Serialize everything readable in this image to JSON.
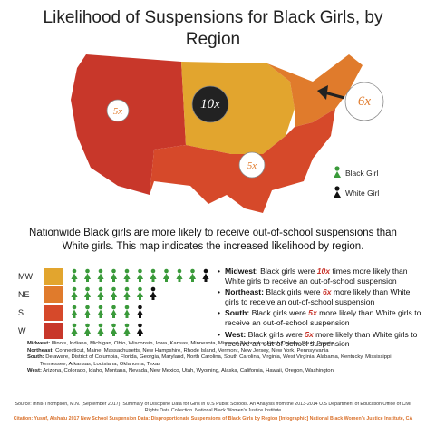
{
  "title": "Likelihood of Suspensions for Black Girls, by Region",
  "map": {
    "bubbles": [
      {
        "region": "W",
        "label": "5x"
      },
      {
        "region": "MW",
        "label": "10x"
      },
      {
        "region": "NE",
        "label": "6x"
      },
      {
        "region": "S",
        "label": "5x"
      }
    ],
    "legend": {
      "black": "Black Girl",
      "white": "White Girl"
    }
  },
  "intro": "Nationwide Black girls are more likely to receive out-of-school suspensions than White girls. This map indicates the increased likelihood by region.",
  "rows": [
    {
      "label": "MW",
      "color": "#e2a52e",
      "black_count": 10,
      "white_count": 1
    },
    {
      "label": "NE",
      "color": "#e07b2c",
      "black_count": 6,
      "white_count": 1
    },
    {
      "label": "S",
      "color": "#d6492a",
      "black_count": 5,
      "white_count": 1
    },
    {
      "label": "W",
      "color": "#c8372a",
      "black_count": 5,
      "white_count": 1
    }
  ],
  "bullets": [
    {
      "region": "Midwest:",
      "before": "Black girls were ",
      "emph": "10x",
      "after": " times more likely than White girls to receive an out-of-school suspension"
    },
    {
      "region": "Northeast:",
      "before": "Black girls were ",
      "emph": "6x",
      "after": " more likely than White girls to receive an out-of-school suspension"
    },
    {
      "region": "South:",
      "before": "Black girls were ",
      "emph": "5x",
      "after": " more likely than White girls to receive an out-of-school suspension"
    },
    {
      "region": "West:",
      "before": "Black girls were ",
      "emph": "5x",
      "after": " more likely than White girls to receive an out-of-school suspension"
    }
  ],
  "definitions": [
    {
      "region": "Midwest:",
      "states": "Illinois, Indiana, Michigan, Ohio, Wisconsin, Iowa, Kansas, Minnesota, Missouri, Nebraska, North Dakota, South Dakota"
    },
    {
      "region": "Northeast:",
      "states": "Connecticut, Maine, Massachusetts, New Hampshire, Rhode Island, Vermont, New Jersey, New York, Pennsylvania"
    },
    {
      "region": "South:",
      "states": "Delaware, District of Columbia, Florida, Georgia, Maryland, North Carolina, South Carolina, Virginia, West Virginia, Alabama, Kentucky, Mississippi, Tennessee, Arkansas, Louisiana, Oklahoma, Texas"
    },
    {
      "region": "West:",
      "states": "Arizona, Colorado, Idaho, Montana, Nevada, New Mexico, Utah, Wyoming, Alaska, California, Hawaii, Oregon, Washington"
    }
  ],
  "source": "Source: Innis-Thompson, M.N. (September 2017), Summary of Discipline Data for Girls in U.S Public Schools. An Analysis from the 2013-2014 U.S Department of Education Office of Civil Rights Data Collection. National Black Women's Justice Institute",
  "citation": "Citation: Yusuf, Alshatu 2017 New School Suspension Data: Disproportionate Suspensions of Black Girls by Region [Infographic] National Black Women's Justice Institute, CA"
}
